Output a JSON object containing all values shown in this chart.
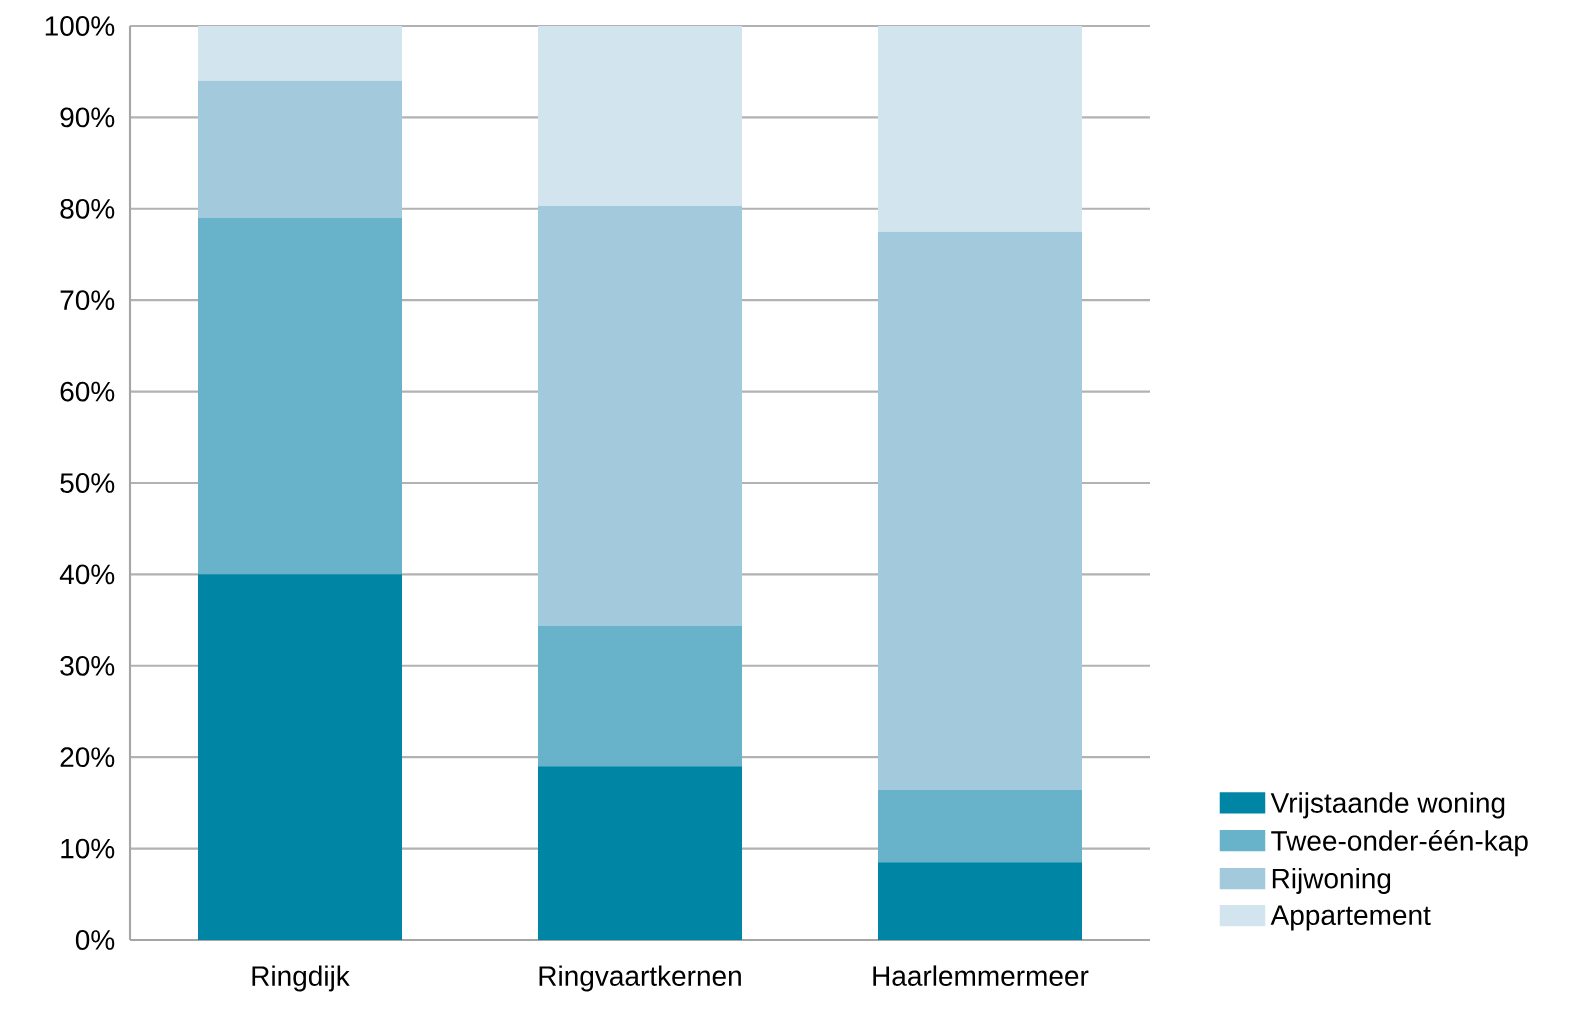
{
  "chart_data": {
    "type": "bar",
    "stacked": true,
    "categories": [
      "Ringdijk",
      "Ringvaartkernen",
      "Haarlemmermeer"
    ],
    "series": [
      {
        "name": "Vrijstaande woning",
        "color": "#0085a5",
        "values": [
          40,
          19,
          8.5
        ]
      },
      {
        "name": "Twee-onder-één-kap",
        "color": "#68b2ca",
        "values": [
          39,
          15.4,
          7.9
        ]
      },
      {
        "name": "Rijwoning",
        "color": "#a3cadc",
        "values": [
          15,
          45.9,
          61.1
        ]
      },
      {
        "name": "Appartement",
        "color": "#d2e5ee",
        "values": [
          6,
          19.7,
          22.5
        ]
      }
    ],
    "ylim": [
      0,
      100
    ],
    "yticks": [
      {
        "value": 0,
        "label": "0%"
      },
      {
        "value": 10,
        "label": "10%"
      },
      {
        "value": 20,
        "label": "20%"
      },
      {
        "value": 30,
        "label": "30%"
      },
      {
        "value": 40,
        "label": "40%"
      },
      {
        "value": 50,
        "label": "50%"
      },
      {
        "value": 60,
        "label": "60%"
      },
      {
        "value": 70,
        "label": "70%"
      },
      {
        "value": 80,
        "label": "80%"
      },
      {
        "value": 90,
        "label": "90%"
      },
      {
        "value": 100,
        "label": "100%"
      }
    ],
    "grid": "y",
    "legend": "right"
  }
}
